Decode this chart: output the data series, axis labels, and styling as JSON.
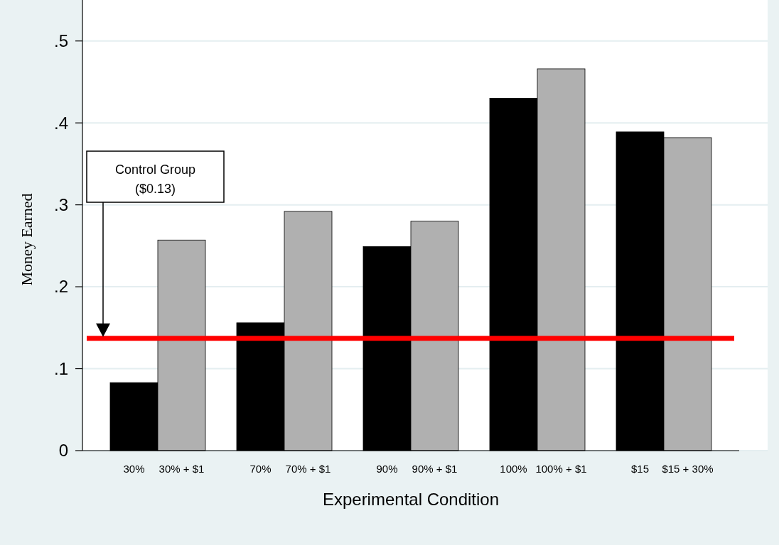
{
  "chart_data": {
    "type": "bar",
    "xlabel": "Experimental Condition",
    "ylabel": "Money Earned",
    "categories": [
      "30%",
      "30% + $1",
      "70%",
      "70% + $1",
      "90%",
      "90% + $1",
      "100%",
      "100% + $1",
      "$15",
      "$15 + 30%"
    ],
    "values": [
      0.083,
      0.257,
      0.156,
      0.292,
      0.249,
      0.28,
      0.43,
      0.466,
      0.389,
      0.382
    ],
    "colors": [
      "#000000",
      "#b0b0b0",
      "#000000",
      "#b0b0b0",
      "#000000",
      "#b0b0b0",
      "#000000",
      "#b0b0b0",
      "#000000",
      "#b0b0b0"
    ],
    "ylim": [
      0,
      0.55
    ],
    "yticks": [
      0,
      {
        "value": 0.1,
        "label": ".1"
      },
      {
        "value": 0.2,
        "label": ".2"
      },
      {
        "value": 0.3,
        "label": ".3"
      },
      {
        "value": 0.4,
        "label": ".4"
      },
      {
        "value": 0.5,
        "label": ".5"
      }
    ],
    "grid": "y",
    "annotations": [
      "Control Group\n($0.13)"
    ],
    "ref_lines": [
      {
        "axis": "y",
        "value": 0.137,
        "color": "#ff0000"
      }
    ]
  }
}
